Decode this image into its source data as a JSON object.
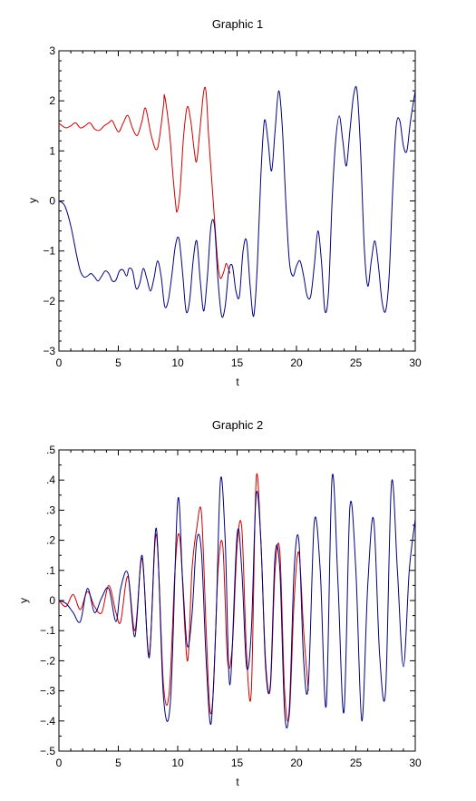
{
  "chart_data": [
    {
      "type": "line",
      "title": "Graphic 1",
      "xlabel": "t",
      "ylabel": "y",
      "xlim": [
        0,
        30
      ],
      "ylim": [
        -3,
        3
      ],
      "xticks": [
        0,
        5,
        10,
        15,
        20,
        25,
        30
      ],
      "yticks": [
        -3,
        -2,
        -1,
        0,
        1,
        2,
        3
      ],
      "grid": false,
      "series": [
        {
          "color": "#d00000",
          "points": [
            [
              0,
              1.55
            ],
            [
              0.3,
              1.5
            ],
            [
              0.6,
              1.46
            ],
            [
              1.0,
              1.5
            ],
            [
              1.4,
              1.56
            ],
            [
              1.8,
              1.46
            ],
            [
              2.2,
              1.5
            ],
            [
              2.6,
              1.56
            ],
            [
              3.0,
              1.44
            ],
            [
              3.4,
              1.41
            ],
            [
              3.8,
              1.5
            ],
            [
              4.2,
              1.56
            ],
            [
              4.5,
              1.6
            ],
            [
              5.0,
              1.38
            ],
            [
              5.4,
              1.55
            ],
            [
              5.8,
              1.71
            ],
            [
              6.2,
              1.45
            ],
            [
              6.6,
              1.31
            ],
            [
              7.0,
              1.6
            ],
            [
              7.3,
              1.85
            ],
            [
              7.8,
              1.28
            ],
            [
              8.3,
              1.05
            ],
            [
              8.8,
              1.9
            ],
            [
              8.9,
              2.1
            ],
            [
              9.3,
              1.4
            ],
            [
              9.6,
              0.5
            ],
            [
              9.8,
              0.0
            ],
            [
              9.95,
              -0.22
            ],
            [
              10.2,
              0.2
            ],
            [
              10.5,
              1.3
            ],
            [
              10.8,
              1.88
            ],
            [
              11.1,
              1.6
            ],
            [
              11.4,
              1.0
            ],
            [
              11.6,
              0.8
            ],
            [
              11.9,
              1.5
            ],
            [
              12.2,
              2.2
            ],
            [
              12.4,
              2.15
            ],
            [
              12.6,
              1.3
            ],
            [
              12.9,
              0.3
            ],
            [
              13.2,
              -0.7
            ],
            [
              13.4,
              -1.3
            ],
            [
              13.6,
              -1.55
            ],
            [
              13.9,
              -1.4
            ],
            [
              14.1,
              -1.25
            ],
            [
              14.4,
              -1.45
            ]
          ]
        },
        {
          "color": "#000080",
          "points": [
            [
              0,
              0.0
            ],
            [
              0.5,
              -0.1
            ],
            [
              1.0,
              -0.5
            ],
            [
              1.5,
              -1.1
            ],
            [
              1.8,
              -1.4
            ],
            [
              2.1,
              -1.52
            ],
            [
              2.4,
              -1.5
            ],
            [
              2.7,
              -1.45
            ],
            [
              3.0,
              -1.52
            ],
            [
              3.3,
              -1.6
            ],
            [
              3.6,
              -1.5
            ],
            [
              3.9,
              -1.4
            ],
            [
              4.2,
              -1.45
            ],
            [
              4.5,
              -1.6
            ],
            [
              4.8,
              -1.58
            ],
            [
              5.1,
              -1.4
            ],
            [
              5.4,
              -1.38
            ],
            [
              5.7,
              -1.5
            ],
            [
              5.9,
              -1.35
            ],
            [
              6.2,
              -1.4
            ],
            [
              6.5,
              -1.75
            ],
            [
              6.8,
              -1.65
            ],
            [
              7.1,
              -1.35
            ],
            [
              7.4,
              -1.55
            ],
            [
              7.7,
              -1.8
            ],
            [
              8.0,
              -1.55
            ],
            [
              8.3,
              -1.2
            ],
            [
              8.6,
              -1.5
            ],
            [
              8.9,
              -2.1
            ],
            [
              9.2,
              -2.0
            ],
            [
              9.5,
              -1.5
            ],
            [
              9.8,
              -0.9
            ],
            [
              10.1,
              -0.75
            ],
            [
              10.4,
              -1.4
            ],
            [
              10.7,
              -2.2
            ],
            [
              11.0,
              -2.0
            ],
            [
              11.3,
              -1.2
            ],
            [
              11.6,
              -0.8
            ],
            [
              11.9,
              -1.6
            ],
            [
              12.2,
              -2.2
            ],
            [
              12.5,
              -1.5
            ],
            [
              12.8,
              -0.5
            ],
            [
              13.1,
              -0.5
            ],
            [
              13.4,
              -1.6
            ],
            [
              13.7,
              -2.3
            ],
            [
              14.0,
              -2.1
            ],
            [
              14.3,
              -1.4
            ],
            [
              14.6,
              -1.3
            ],
            [
              14.9,
              -1.8
            ],
            [
              15.2,
              -1.9
            ],
            [
              15.5,
              -1.0
            ],
            [
              15.8,
              -0.8
            ],
            [
              16.1,
              -1.7
            ],
            [
              16.4,
              -2.3
            ],
            [
              16.7,
              -1.3
            ],
            [
              17.0,
              0.5
            ],
            [
              17.3,
              1.6
            ],
            [
              17.6,
              1.2
            ],
            [
              17.9,
              0.6
            ],
            [
              18.2,
              1.4
            ],
            [
              18.5,
              2.2
            ],
            [
              18.8,
              1.5
            ],
            [
              19.1,
              0.0
            ],
            [
              19.4,
              -1.2
            ],
            [
              19.7,
              -1.5
            ],
            [
              20.0,
              -1.3
            ],
            [
              20.3,
              -1.2
            ],
            [
              20.6,
              -1.5
            ],
            [
              20.9,
              -1.9
            ],
            [
              21.2,
              -1.9
            ],
            [
              21.5,
              -1.3
            ],
            [
              21.8,
              -0.6
            ],
            [
              22.1,
              -1.2
            ],
            [
              22.4,
              -2.2
            ],
            [
              22.7,
              -1.8
            ],
            [
              23.0,
              0.0
            ],
            [
              23.3,
              1.2
            ],
            [
              23.6,
              1.7
            ],
            [
              23.9,
              1.2
            ],
            [
              24.2,
              0.7
            ],
            [
              24.5,
              1.4
            ],
            [
              24.8,
              2.1
            ],
            [
              25.1,
              2.2
            ],
            [
              25.4,
              1.0
            ],
            [
              25.7,
              -0.9
            ],
            [
              26.0,
              -1.7
            ],
            [
              26.3,
              -1.2
            ],
            [
              26.6,
              -0.8
            ],
            [
              26.9,
              -1.3
            ],
            [
              27.2,
              -2.0
            ],
            [
              27.5,
              -2.2
            ],
            [
              27.8,
              -1.5
            ],
            [
              28.1,
              0.2
            ],
            [
              28.4,
              1.5
            ],
            [
              28.7,
              1.6
            ],
            [
              29.0,
              1.1
            ],
            [
              29.3,
              1.0
            ],
            [
              29.6,
              1.6
            ],
            [
              30.0,
              2.2
            ]
          ]
        }
      ]
    },
    {
      "type": "line",
      "title": "Graphic 2",
      "xlabel": "t",
      "ylabel": "y",
      "xlim": [
        0,
        30
      ],
      "ylim": [
        -0.5,
        0.5
      ],
      "xticks": [
        0,
        5,
        10,
        15,
        20,
        25,
        30
      ],
      "yticks": [
        -0.5,
        -0.4,
        -0.3,
        -0.2,
        -0.1,
        0,
        0.1,
        0.2,
        0.3,
        0.4,
        0.5
      ],
      "grid": false,
      "series": [
        {
          "color": "#d00000",
          "points": [
            [
              0,
              0.0
            ],
            [
              0.6,
              -0.02
            ],
            [
              1.2,
              0.02
            ],
            [
              1.8,
              -0.03
            ],
            [
              2.4,
              0.03
            ],
            [
              3.0,
              -0.02
            ],
            [
              3.6,
              -0.04
            ],
            [
              4.2,
              0.05
            ],
            [
              4.8,
              -0.04
            ],
            [
              5.2,
              -0.07
            ],
            [
              5.8,
              0.08
            ],
            [
              6.4,
              -0.1
            ],
            [
              7.0,
              0.14
            ],
            [
              7.6,
              -0.18
            ],
            [
              8.2,
              0.22
            ],
            [
              8.8,
              -0.28
            ],
            [
              9.3,
              -0.3
            ],
            [
              9.8,
              0.12
            ],
            [
              10.2,
              0.2
            ],
            [
              10.8,
              -0.2
            ],
            [
              11.2,
              0.1
            ],
            [
              11.6,
              0.24
            ],
            [
              12.0,
              0.29
            ],
            [
              12.4,
              -0.1
            ],
            [
              12.7,
              -0.36
            ],
            [
              13.0,
              -0.3
            ],
            [
              13.4,
              0.1
            ],
            [
              13.8,
              0.18
            ],
            [
              14.2,
              -0.2
            ],
            [
              14.6,
              -0.15
            ],
            [
              15.0,
              0.18
            ],
            [
              15.4,
              0.24
            ],
            [
              15.8,
              -0.18
            ],
            [
              16.2,
              -0.3
            ],
            [
              16.6,
              0.4
            ],
            [
              17.0,
              0.2
            ],
            [
              17.4,
              -0.2
            ],
            [
              17.8,
              -0.29
            ],
            [
              18.2,
              0.1
            ],
            [
              18.6,
              0.16
            ],
            [
              19.0,
              -0.3
            ],
            [
              19.4,
              -0.38
            ],
            [
              19.8,
              0.0
            ],
            [
              20.2,
              0.16
            ],
            [
              20.6,
              -0.1
            ],
            [
              21.0,
              -0.3
            ]
          ]
        },
        {
          "color": "#000080",
          "points": [
            [
              0,
              0.0
            ],
            [
              0.6,
              -0.01
            ],
            [
              1.2,
              -0.04
            ],
            [
              1.8,
              -0.07
            ],
            [
              2.4,
              0.04
            ],
            [
              3.0,
              -0.04
            ],
            [
              3.6,
              0.01
            ],
            [
              4.2,
              0.04
            ],
            [
              4.8,
              -0.07
            ],
            [
              5.2,
              0.04
            ],
            [
              5.8,
              0.09
            ],
            [
              6.4,
              -0.12
            ],
            [
              7.0,
              0.15
            ],
            [
              7.6,
              -0.19
            ],
            [
              8.2,
              0.24
            ],
            [
              8.8,
              -0.32
            ],
            [
              9.4,
              -0.33
            ],
            [
              10.0,
              0.33
            ],
            [
              10.4,
              0.08
            ],
            [
              10.8,
              -0.15
            ],
            [
              11.2,
              -0.05
            ],
            [
              11.6,
              0.2
            ],
            [
              12.0,
              0.16
            ],
            [
              12.4,
              -0.2
            ],
            [
              12.8,
              -0.41
            ],
            [
              13.2,
              -0.1
            ],
            [
              13.6,
              0.4
            ],
            [
              14.0,
              0.2
            ],
            [
              14.4,
              -0.28
            ],
            [
              15.0,
              0.22
            ],
            [
              15.4,
              0.1
            ],
            [
              15.8,
              -0.22
            ],
            [
              16.2,
              -0.1
            ],
            [
              16.6,
              0.35
            ],
            [
              17.0,
              0.2
            ],
            [
              17.4,
              -0.22
            ],
            [
              17.8,
              -0.28
            ],
            [
              18.2,
              0.15
            ],
            [
              18.6,
              0.1
            ],
            [
              19.0,
              -0.37
            ],
            [
              19.4,
              -0.36
            ],
            [
              19.8,
              0.1
            ],
            [
              20.2,
              0.2
            ],
            [
              20.6,
              -0.2
            ],
            [
              21.0,
              -0.28
            ],
            [
              21.5,
              0.26
            ],
            [
              22.0,
              0.1
            ],
            [
              22.5,
              -0.35
            ],
            [
              23.0,
              0.41
            ],
            [
              23.5,
              0.05
            ],
            [
              24.0,
              -0.37
            ],
            [
              24.5,
              0.31
            ],
            [
              25.0,
              0.1
            ],
            [
              25.5,
              -0.4
            ],
            [
              26.0,
              0.05
            ],
            [
              26.5,
              0.27
            ],
            [
              27.0,
              -0.18
            ],
            [
              27.5,
              -0.3
            ],
            [
              28.0,
              0.39
            ],
            [
              28.5,
              0.1
            ],
            [
              29.0,
              -0.22
            ],
            [
              29.5,
              0.1
            ],
            [
              30.0,
              0.27
            ]
          ]
        }
      ]
    }
  ]
}
